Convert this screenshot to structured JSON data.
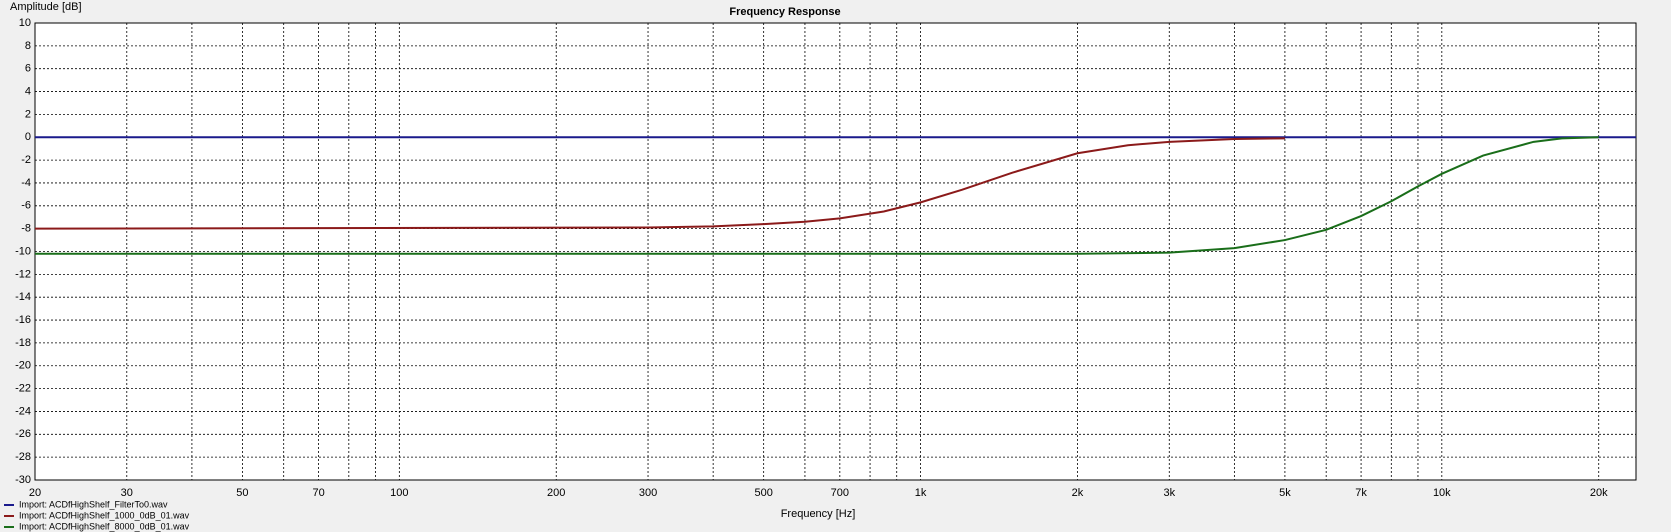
{
  "chart_data": {
    "type": "line",
    "title": "Frequency Response",
    "xlabel": "Frequency [Hz]",
    "ylabel": "Amplitude [dB]",
    "xscale": "log",
    "xlim": [
      20,
      23580
    ],
    "ylim": [
      -30,
      10
    ],
    "xticks": [
      20,
      30,
      50,
      70,
      100,
      200,
      300,
      500,
      700,
      {
        "value": 1000,
        "label": "1k"
      },
      {
        "value": 2000,
        "label": "2k"
      },
      {
        "value": 3000,
        "label": "3k"
      },
      {
        "value": 5000,
        "label": "5k"
      },
      {
        "value": 7000,
        "label": "7k"
      },
      {
        "value": 10000,
        "label": "10k"
      },
      {
        "value": 20000,
        "label": "20k"
      }
    ],
    "x_minor_ticks": [
      40,
      60,
      80,
      90,
      400,
      600,
      800,
      900,
      4000,
      6000,
      8000,
      9000
    ],
    "yticks": [
      10,
      8,
      6,
      4,
      2,
      0,
      -2,
      -4,
      -6,
      -8,
      -10,
      -12,
      -14,
      -16,
      -18,
      -20,
      -22,
      -24,
      -26,
      -28,
      -30
    ],
    "grid": true,
    "legend": "bottom-left",
    "series": [
      {
        "name": "Import: ACDfHighShelf_FilterTo0.wav",
        "color": "#1a1a8c",
        "x": [
          20,
          23580
        ],
        "values": [
          0,
          0
        ]
      },
      {
        "name": "Import: ACDfHighShelf_1000_0dB_01.wav",
        "color": "#8b1a1a",
        "x": [
          20,
          300,
          400,
          500,
          600,
          700,
          850,
          1000,
          1200,
          1500,
          2000,
          2500,
          3000,
          4000,
          5000
        ],
        "values": [
          -8,
          -7.9,
          -7.8,
          -7.6,
          -7.4,
          -7.1,
          -6.5,
          -5.7,
          -4.6,
          -3.1,
          -1.4,
          -0.7,
          -0.4,
          -0.15,
          -0.1
        ]
      },
      {
        "name": "Import: ACDfHighShelf_8000_0dB_01.wav",
        "color": "#1a6e1a",
        "x": [
          20,
          2000,
          3000,
          4000,
          5000,
          6000,
          7000,
          8000,
          9000,
          10000,
          12000,
          15000,
          17000,
          20000
        ],
        "values": [
          -10.2,
          -10.2,
          -10.1,
          -9.7,
          -9.0,
          -8.1,
          -6.9,
          -5.6,
          -4.3,
          -3.2,
          -1.6,
          -0.4,
          -0.1,
          0
        ]
      }
    ]
  }
}
